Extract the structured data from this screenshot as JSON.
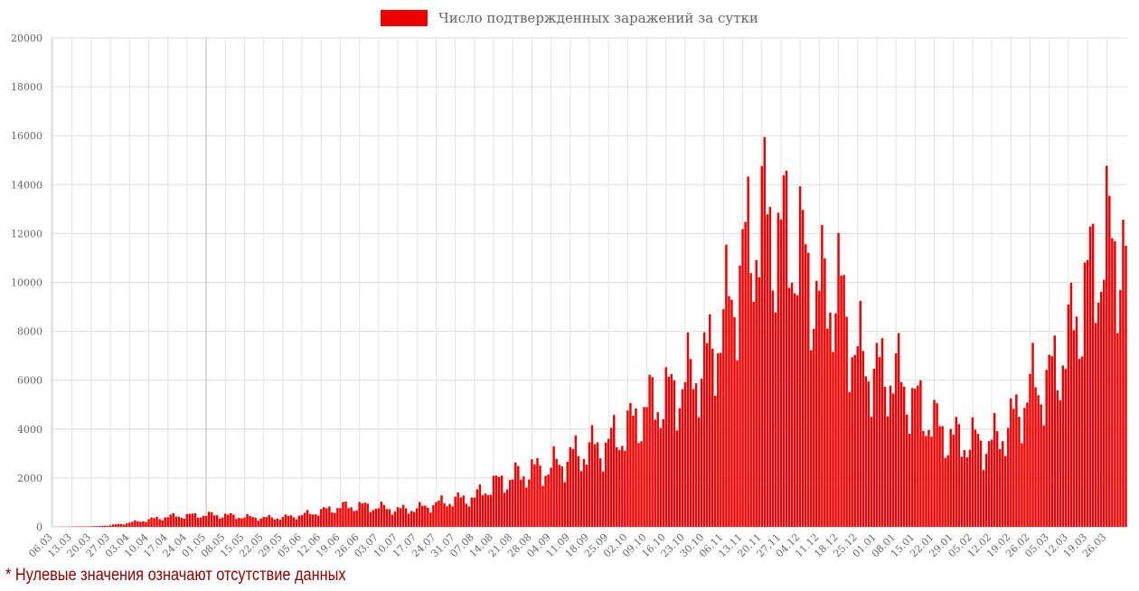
{
  "chart_data": {
    "type": "bar",
    "legend": {
      "label": "Число подтвержденных заражений за сутки",
      "placement": "top-center"
    },
    "ylim": [
      0,
      20000
    ],
    "yticks": [
      0,
      2000,
      4000,
      6000,
      8000,
      10000,
      12000,
      14000,
      16000,
      18000,
      20000
    ],
    "grid": true,
    "first_date": "06.03",
    "tick_labels": [
      "06.03",
      "13.03",
      "20.03",
      "27.03",
      "03.04",
      "10.04",
      "17.04",
      "24.04",
      "01.05",
      "08.05",
      "15.05",
      "22.05",
      "29.05",
      "05.06",
      "12.06",
      "19.06",
      "26.06",
      "03.07",
      "10.07",
      "17.07",
      "24.07",
      "31.07",
      "07.08",
      "14.08",
      "21.08",
      "28.08",
      "04.09",
      "11.09",
      "18.09",
      "25.09",
      "02.10",
      "09.10",
      "16.10",
      "23.10",
      "30.10",
      "06.11",
      "13.11",
      "20.11",
      "27.11",
      "04.12",
      "11.12",
      "18.12",
      "25.12",
      "01.01",
      "08.01",
      "15.01",
      "22.01",
      "29.01",
      "05.02",
      "12.02",
      "19.02",
      "26.02",
      "05.03",
      "12.03",
      "19.03",
      "26.03"
    ],
    "weekly_anchor_values": [
      0,
      10,
      20,
      60,
      170,
      290,
      420,
      460,
      490,
      470,
      400,
      370,
      380,
      480,
      640,
      810,
      860,
      800,
      700,
      740,
      940,
      1100,
      1200,
      1750,
      2000,
      2300,
      2400,
      2850,
      3150,
      3400,
      4000,
      4900,
      5300,
      5900,
      6600,
      8300,
      10800,
      12600,
      12000,
      11200,
      9500,
      9600,
      7000,
      6300,
      6200,
      5100,
      4200,
      3600,
      3500,
      3400,
      4200,
      5600,
      6000,
      7500,
      10000,
      11500,
      11500
    ],
    "series_color": "#ee0000"
  },
  "footnote": {
    "text": "* Нулевые значения означают отсутствие данных",
    "color": "#8b0000"
  }
}
